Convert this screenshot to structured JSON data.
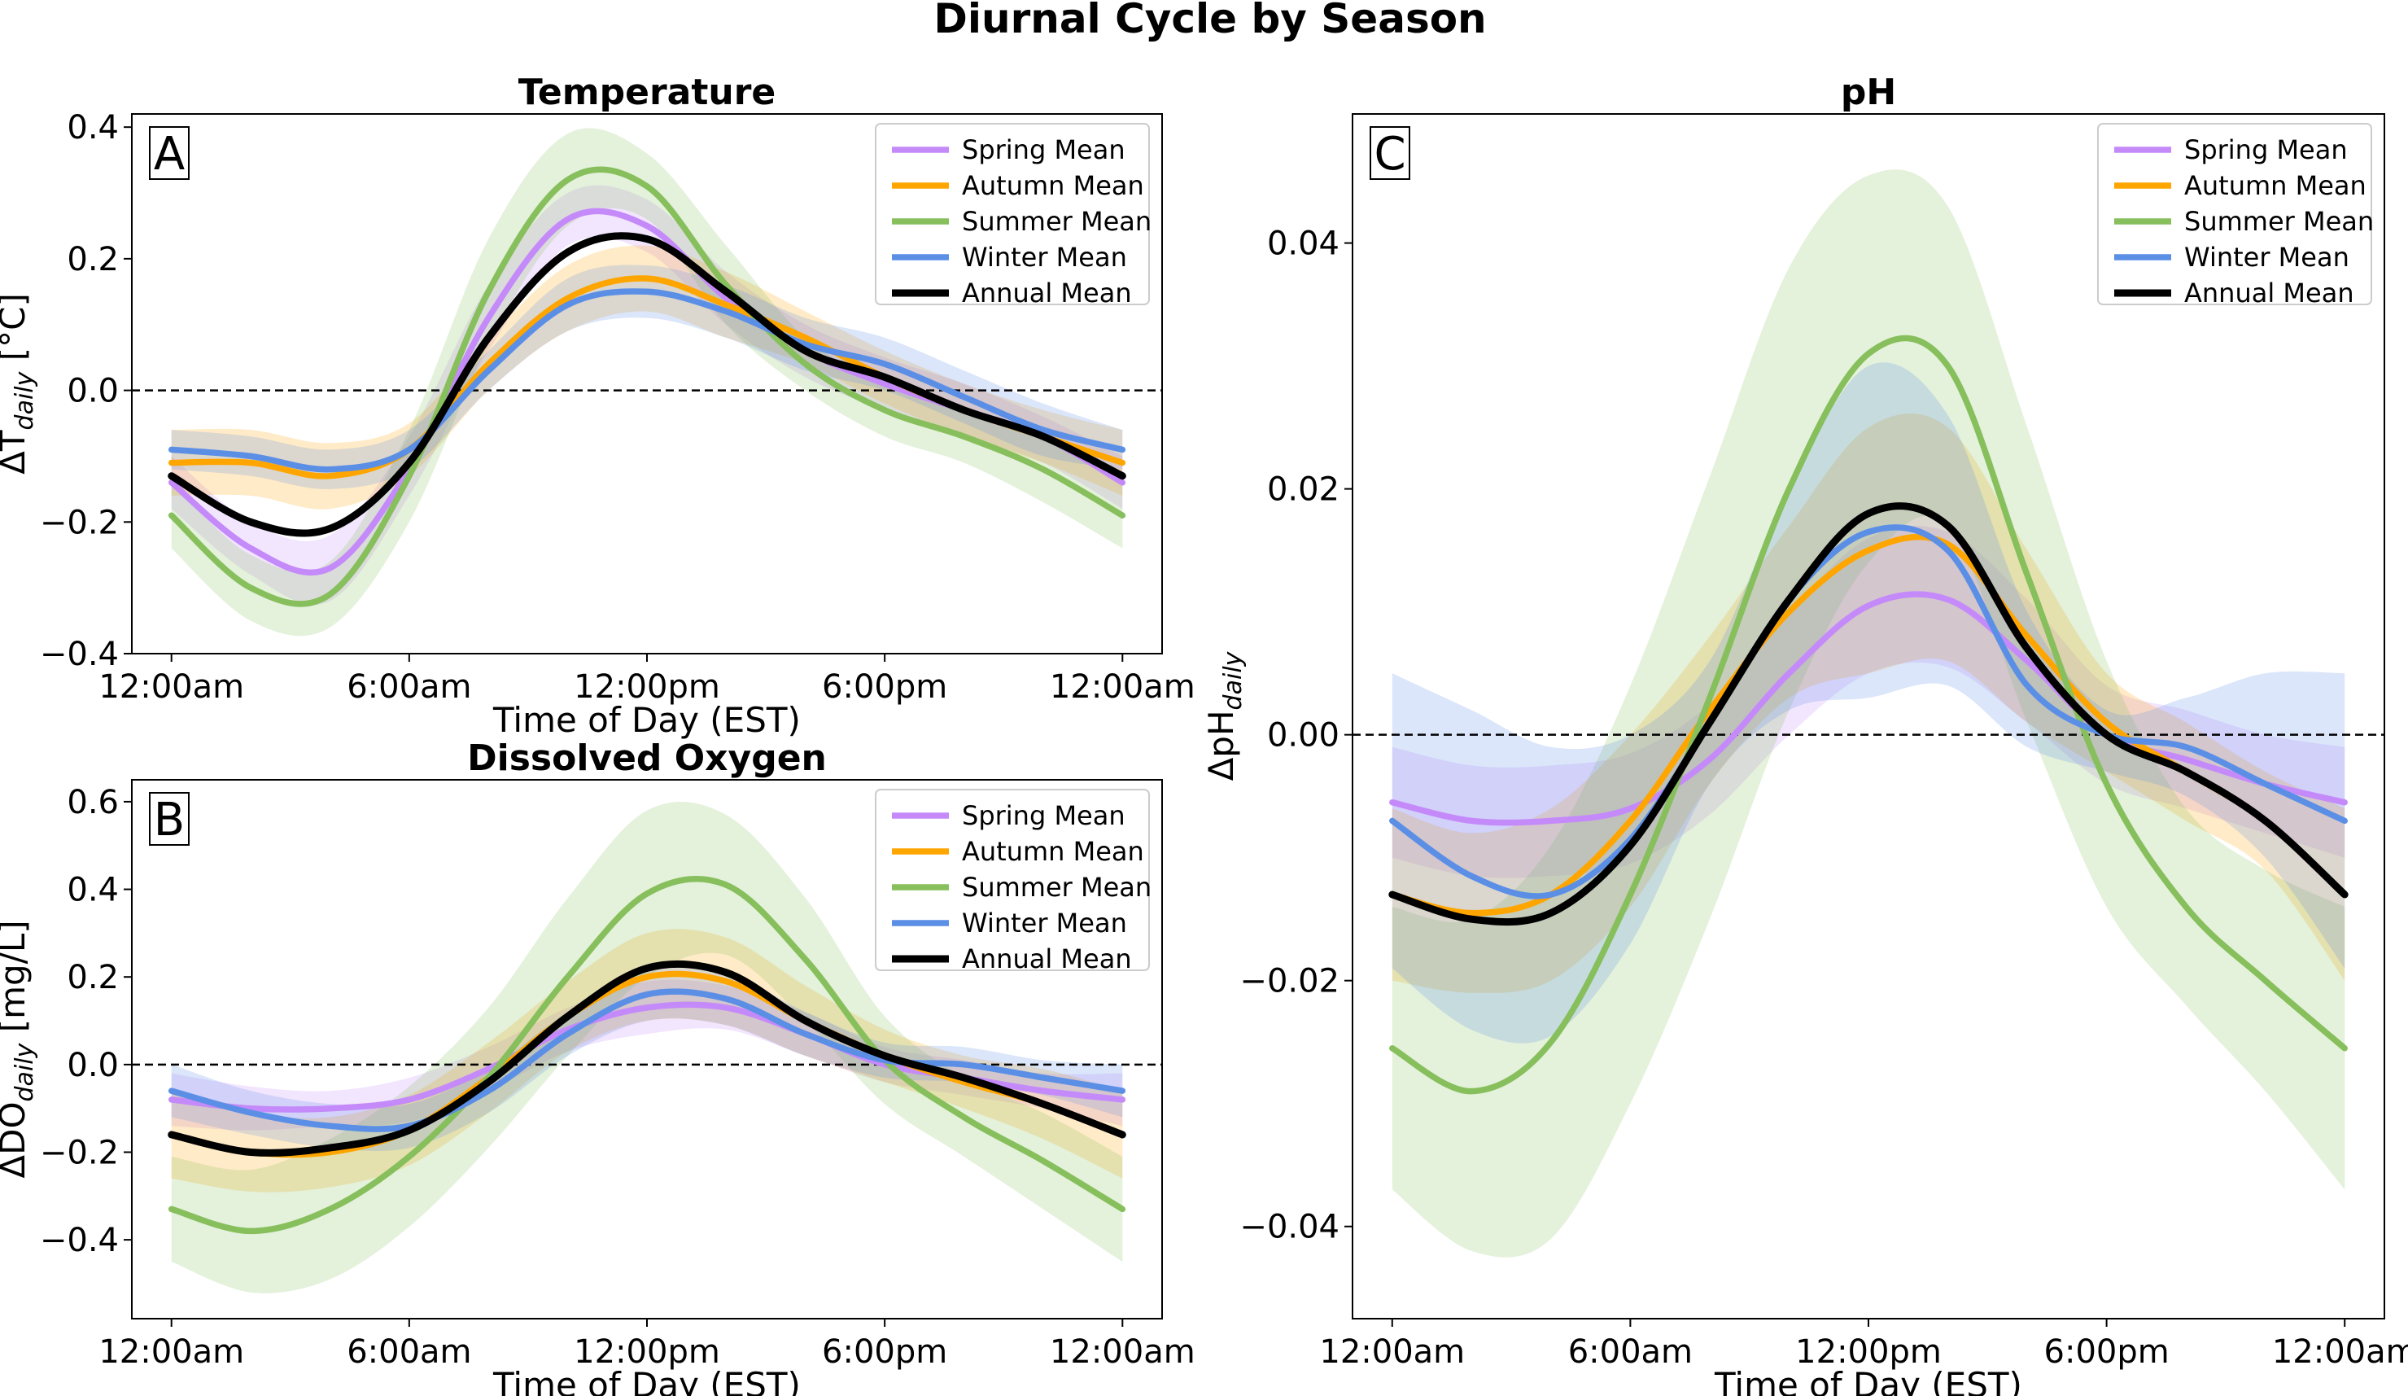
{
  "figure": {
    "title": "Diurnal Cycle by Season"
  },
  "colors": {
    "spring": "#c58af9",
    "autumn": "#ffa500",
    "summer": "#86bf5c",
    "winter": "#5b8fe6",
    "annual": "#000000"
  },
  "chart_data": [
    {
      "id": "A",
      "panel_letter": "A",
      "type": "line",
      "title": "Temperature",
      "xlabel": "Time of Day (EST)",
      "ylabel_main": "ΔT",
      "ylabel_sub": "daily",
      "ylabel_tail": " [°C]",
      "xlim": [
        -1,
        25
      ],
      "ylim": [
        -0.4,
        0.42
      ],
      "yticks": [
        -0.4,
        -0.2,
        0.0,
        0.2,
        0.4
      ],
      "ytick_labels": [
        "−0.4",
        "−0.2",
        "0.0",
        "0.2",
        "0.4"
      ],
      "xticks": [
        0,
        6,
        12,
        18,
        24
      ],
      "xtick_labels": [
        "12:00am",
        "6:00am",
        "12:00pm",
        "6:00pm",
        "12:00am"
      ],
      "x": [
        0,
        2,
        4,
        6,
        8,
        10,
        12,
        14,
        16,
        18,
        20,
        22,
        24
      ],
      "series": [
        {
          "key": "spring",
          "name": "Spring Mean",
          "values": [
            -0.14,
            -0.24,
            -0.27,
            -0.12,
            0.11,
            0.26,
            0.25,
            0.14,
            0.06,
            0.01,
            -0.03,
            -0.07,
            -0.14
          ],
          "upper": [
            -0.1,
            -0.2,
            -0.22,
            -0.07,
            0.16,
            0.3,
            0.29,
            0.18,
            0.1,
            0.05,
            0.01,
            -0.04,
            -0.1
          ],
          "lower": [
            -0.18,
            -0.28,
            -0.32,
            -0.16,
            0.06,
            0.22,
            0.21,
            0.1,
            0.02,
            -0.03,
            -0.07,
            -0.11,
            -0.18
          ]
        },
        {
          "key": "autumn",
          "name": "Autumn Mean",
          "values": [
            -0.11,
            -0.11,
            -0.13,
            -0.09,
            0.04,
            0.14,
            0.17,
            0.13,
            0.08,
            0.02,
            -0.03,
            -0.07,
            -0.11
          ],
          "upper": [
            -0.06,
            -0.06,
            -0.08,
            -0.05,
            0.08,
            0.19,
            0.22,
            0.18,
            0.12,
            0.06,
            0.01,
            -0.03,
            -0.06
          ],
          "lower": [
            -0.16,
            -0.16,
            -0.18,
            -0.13,
            0.0,
            0.09,
            0.12,
            0.08,
            0.04,
            -0.02,
            -0.07,
            -0.11,
            -0.16
          ]
        },
        {
          "key": "summer",
          "name": "Summer Mean",
          "values": [
            -0.19,
            -0.3,
            -0.31,
            -0.13,
            0.15,
            0.32,
            0.31,
            0.16,
            0.04,
            -0.03,
            -0.07,
            -0.12,
            -0.19
          ],
          "upper": [
            -0.14,
            -0.25,
            -0.26,
            -0.06,
            0.23,
            0.39,
            0.36,
            0.22,
            0.08,
            0.01,
            -0.03,
            -0.07,
            -0.14
          ],
          "lower": [
            -0.24,
            -0.35,
            -0.36,
            -0.2,
            0.07,
            0.25,
            0.26,
            0.1,
            0.0,
            -0.07,
            -0.11,
            -0.17,
            -0.24
          ]
        },
        {
          "key": "winter",
          "name": "Winter Mean",
          "values": [
            -0.09,
            -0.1,
            -0.12,
            -0.09,
            0.03,
            0.13,
            0.15,
            0.12,
            0.07,
            0.04,
            -0.01,
            -0.06,
            -0.09
          ],
          "upper": [
            -0.06,
            -0.07,
            -0.09,
            -0.06,
            0.06,
            0.17,
            0.19,
            0.16,
            0.11,
            0.08,
            0.03,
            -0.02,
            -0.06
          ],
          "lower": [
            -0.12,
            -0.13,
            -0.15,
            -0.12,
            0.0,
            0.09,
            0.11,
            0.08,
            0.03,
            0.0,
            -0.05,
            -0.1,
            -0.12
          ]
        },
        {
          "key": "annual",
          "name": "Annual Mean",
          "values": [
            -0.13,
            -0.2,
            -0.21,
            -0.11,
            0.08,
            0.21,
            0.23,
            0.15,
            0.06,
            0.02,
            -0.03,
            -0.07,
            -0.13
          ]
        }
      ]
    },
    {
      "id": "B",
      "panel_letter": "B",
      "type": "line",
      "title": "Dissolved Oxygen",
      "xlabel": "Time of Day (EST)",
      "ylabel_main": "ΔDO",
      "ylabel_sub": "daily",
      "ylabel_tail": " [mg/L]",
      "xlim": [
        -1,
        25
      ],
      "ylim": [
        -0.58,
        0.65
      ],
      "yticks": [
        -0.4,
        -0.2,
        0.0,
        0.2,
        0.4,
        0.6
      ],
      "ytick_labels": [
        "−0.4",
        "−0.2",
        "0.0",
        "0.2",
        "0.4",
        "0.6"
      ],
      "xticks": [
        0,
        6,
        12,
        18,
        24
      ],
      "xtick_labels": [
        "12:00am",
        "6:00am",
        "12:00pm",
        "6:00pm",
        "12:00am"
      ],
      "x": [
        0,
        2,
        4,
        6,
        8,
        10,
        12,
        14,
        16,
        18,
        20,
        22,
        24
      ],
      "series": [
        {
          "key": "spring",
          "name": "Spring Mean",
          "values": [
            -0.08,
            -0.1,
            -0.1,
            -0.08,
            -0.01,
            0.08,
            0.13,
            0.13,
            0.07,
            0.0,
            -0.03,
            -0.06,
            -0.08
          ],
          "upper": [
            -0.02,
            -0.05,
            -0.06,
            -0.03,
            0.04,
            0.13,
            0.19,
            0.18,
            0.12,
            0.04,
            0.01,
            -0.02,
            -0.02
          ],
          "lower": [
            -0.14,
            -0.15,
            -0.14,
            -0.13,
            -0.06,
            0.03,
            0.07,
            0.08,
            0.02,
            -0.04,
            -0.07,
            -0.1,
            -0.14
          ]
        },
        {
          "key": "autumn",
          "name": "Autumn Mean",
          "values": [
            -0.16,
            -0.2,
            -0.2,
            -0.15,
            -0.03,
            0.11,
            0.2,
            0.19,
            0.1,
            0.02,
            -0.04,
            -0.09,
            -0.16
          ],
          "upper": [
            -0.06,
            -0.11,
            -0.12,
            -0.07,
            0.05,
            0.19,
            0.3,
            0.29,
            0.18,
            0.08,
            0.02,
            -0.01,
            -0.06
          ],
          "lower": [
            -0.26,
            -0.29,
            -0.28,
            -0.23,
            -0.11,
            0.03,
            0.1,
            0.09,
            0.02,
            -0.04,
            -0.1,
            -0.17,
            -0.26
          ]
        },
        {
          "key": "summer",
          "name": "Summer Mean",
          "values": [
            -0.33,
            -0.38,
            -0.33,
            -0.21,
            -0.03,
            0.2,
            0.39,
            0.41,
            0.24,
            0.01,
            -0.12,
            -0.22,
            -0.33
          ],
          "upper": [
            -0.21,
            -0.24,
            -0.17,
            -0.05,
            0.13,
            0.38,
            0.58,
            0.57,
            0.38,
            0.11,
            -0.03,
            -0.11,
            -0.21
          ],
          "lower": [
            -0.45,
            -0.52,
            -0.49,
            -0.37,
            -0.19,
            0.02,
            0.2,
            0.25,
            0.1,
            -0.09,
            -0.21,
            -0.33,
            -0.45
          ]
        },
        {
          "key": "winter",
          "name": "Winter Mean",
          "values": [
            -0.06,
            -0.11,
            -0.14,
            -0.14,
            -0.06,
            0.07,
            0.16,
            0.15,
            0.07,
            0.01,
            0.0,
            -0.03,
            -0.06
          ],
          "upper": [
            0.0,
            -0.06,
            -0.09,
            -0.09,
            -0.01,
            0.12,
            0.22,
            0.21,
            0.12,
            0.05,
            0.04,
            0.01,
            0.0
          ],
          "lower": [
            -0.12,
            -0.16,
            -0.19,
            -0.19,
            -0.11,
            0.02,
            0.1,
            0.09,
            0.02,
            -0.03,
            -0.04,
            -0.07,
            -0.12
          ]
        },
        {
          "key": "annual",
          "name": "Annual Mean",
          "values": [
            -0.16,
            -0.2,
            -0.19,
            -0.15,
            -0.04,
            0.11,
            0.22,
            0.21,
            0.1,
            0.02,
            -0.03,
            -0.09,
            -0.16
          ]
        }
      ]
    },
    {
      "id": "C",
      "panel_letter": "C",
      "type": "line",
      "title": "pH",
      "xlabel": "Time of Day (EST)",
      "ylabel_main": "ΔpH",
      "ylabel_sub": "daily",
      "ylabel_tail": "",
      "xlim": [
        -1,
        25
      ],
      "ylim": [
        -0.0475,
        0.0505
      ],
      "yticks": [
        -0.04,
        -0.02,
        0.0,
        0.02,
        0.04
      ],
      "ytick_labels": [
        "−0.04",
        "−0.02",
        "0.00",
        "0.02",
        "0.04"
      ],
      "xticks": [
        0,
        6,
        12,
        18,
        24
      ],
      "xtick_labels": [
        "12:00am",
        "6:00am",
        "12:00pm",
        "6:00pm",
        "12:00am"
      ],
      "x": [
        0,
        2,
        4,
        6,
        8,
        10,
        12,
        14,
        16,
        18,
        20,
        22,
        24
      ],
      "series": [
        {
          "key": "spring",
          "name": "Spring Mean",
          "values": [
            -0.0055,
            -0.007,
            -0.007,
            -0.006,
            -0.002,
            0.005,
            0.0105,
            0.011,
            0.006,
            0.0,
            -0.002,
            -0.004,
            -0.0055
          ],
          "upper": [
            -0.001,
            -0.0025,
            -0.0025,
            -0.0015,
            0.0025,
            0.01,
            0.016,
            0.0165,
            0.011,
            0.004,
            0.002,
            0.0,
            -0.001
          ],
          "lower": [
            -0.01,
            -0.0115,
            -0.0115,
            -0.0105,
            -0.0065,
            0.0,
            0.005,
            0.0055,
            0.001,
            -0.004,
            -0.006,
            -0.008,
            -0.01
          ]
        },
        {
          "key": "autumn",
          "name": "Autumn Mean",
          "values": [
            -0.013,
            -0.0145,
            -0.013,
            -0.007,
            0.002,
            0.01,
            0.015,
            0.0155,
            0.008,
            0.001,
            -0.003,
            -0.007,
            -0.013
          ],
          "upper": [
            -0.006,
            -0.008,
            -0.006,
            0.0,
            0.008,
            0.017,
            0.025,
            0.025,
            0.015,
            0.005,
            0.001,
            -0.003,
            -0.006
          ],
          "lower": [
            -0.02,
            -0.021,
            -0.02,
            -0.014,
            -0.004,
            0.003,
            0.005,
            0.006,
            0.001,
            -0.003,
            -0.007,
            -0.011,
            -0.02
          ]
        },
        {
          "key": "summer",
          "name": "Summer Mean",
          "values": [
            -0.0255,
            -0.029,
            -0.025,
            -0.013,
            0.003,
            0.02,
            0.031,
            0.03,
            0.013,
            -0.004,
            -0.014,
            -0.02,
            -0.0255
          ],
          "upper": [
            -0.014,
            -0.015,
            -0.009,
            0.004,
            0.021,
            0.038,
            0.0455,
            0.043,
            0.025,
            0.006,
            -0.006,
            -0.011,
            -0.014
          ],
          "lower": [
            -0.037,
            -0.042,
            -0.041,
            -0.03,
            -0.015,
            0.002,
            0.014,
            0.017,
            0.001,
            -0.014,
            -0.022,
            -0.029,
            -0.037
          ]
        },
        {
          "key": "winter",
          "name": "Winter Mean",
          "values": [
            -0.007,
            -0.0115,
            -0.013,
            -0.0085,
            0.001,
            0.011,
            0.0165,
            0.015,
            0.004,
            0.0,
            -0.001,
            -0.004,
            -0.007
          ],
          "upper": [
            0.005,
            0.002,
            -0.001,
            0.0,
            0.006,
            0.02,
            0.03,
            0.026,
            0.01,
            0.002,
            0.003,
            0.005,
            0.005
          ],
          "lower": [
            -0.019,
            -0.024,
            -0.0245,
            -0.017,
            -0.004,
            0.002,
            0.003,
            0.004,
            -0.001,
            -0.003,
            -0.005,
            -0.01,
            -0.019
          ]
        },
        {
          "key": "annual",
          "name": "Annual Mean",
          "values": [
            -0.013,
            -0.015,
            -0.0145,
            -0.009,
            0.001,
            0.011,
            0.018,
            0.017,
            0.007,
            0.0,
            -0.003,
            -0.007,
            -0.013
          ]
        }
      ]
    }
  ]
}
